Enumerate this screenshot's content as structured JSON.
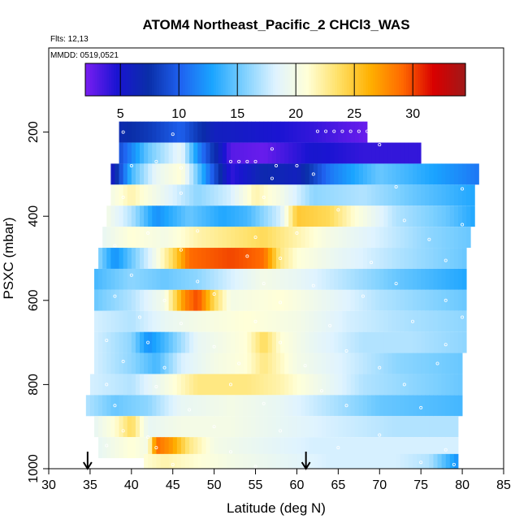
{
  "chart_data": {
    "type": "heatmap",
    "title": "ATOM4 Northeast_Pacific_2 CHCl3_WAS",
    "flights_label": "Flts: 12,13",
    "mmdd_label": "MMDD: 0519,0521",
    "xlabel": "Latitude (deg N)",
    "ylabel": "PSXC (mbar)",
    "xlim": [
      30,
      85
    ],
    "ylim": [
      1000,
      0
    ],
    "x_ticks": [
      30,
      35,
      40,
      45,
      50,
      55,
      60,
      65,
      70,
      75,
      80,
      85
    ],
    "y_ticks": [
      200,
      400,
      600,
      800,
      1000
    ],
    "colorbar": {
      "range": [
        2,
        34.5
      ],
      "ticks": [
        5,
        10,
        15,
        20,
        25,
        30
      ],
      "colors": [
        "#7a1ef2",
        "#1a14d2",
        "#0a2ea8",
        "#1f62f0",
        "#1aa4ff",
        "#7dd0ff",
        "#dff3ff",
        "#ffffd8",
        "#ffe066",
        "#ffb000",
        "#ff6a00",
        "#d90000",
        "#a01818"
      ],
      "grid_color": "#000000"
    },
    "colors": {
      "sample_point": "#ffffff",
      "frame": "#000000"
    },
    "arrows_at_latitude": [
      34.7,
      61.1
    ],
    "rows": [
      {
        "p": 200,
        "lat": [
          38.5,
          68.5
        ],
        "knots": [
          [
            38.5,
            7
          ],
          [
            42,
            8
          ],
          [
            46,
            10
          ],
          [
            50,
            6
          ],
          [
            56,
            5
          ],
          [
            62,
            4
          ],
          [
            66,
            3
          ],
          [
            68.5,
            2.5
          ]
        ]
      },
      {
        "p": 250,
        "lat": [
          38.5,
          75
        ],
        "knots": [
          [
            38.5,
            9
          ],
          [
            42,
            15
          ],
          [
            46,
            19
          ],
          [
            48,
            12
          ],
          [
            52,
            3
          ],
          [
            56,
            2.5
          ],
          [
            62,
            5
          ],
          [
            68,
            4
          ],
          [
            75,
            4
          ]
        ]
      },
      {
        "p": 300,
        "lat": [
          37.5,
          82
        ],
        "knots": [
          [
            37.5,
            5
          ],
          [
            40,
            14
          ],
          [
            43,
            19
          ],
          [
            46,
            21
          ],
          [
            49,
            12
          ],
          [
            52,
            4
          ],
          [
            56,
            7
          ],
          [
            60,
            6
          ],
          [
            64,
            11
          ],
          [
            70,
            15
          ],
          [
            76,
            13
          ],
          [
            82,
            11
          ]
        ]
      },
      {
        "p": 350,
        "lat": [
          37.5,
          81.5
        ],
        "knots": [
          [
            37.5,
            20
          ],
          [
            40,
            22
          ],
          [
            44,
            19
          ],
          [
            48,
            16
          ],
          [
            52,
            18
          ],
          [
            55,
            22
          ],
          [
            58,
            20
          ],
          [
            62,
            16
          ],
          [
            68,
            17
          ],
          [
            74,
            15
          ],
          [
            81.5,
            13
          ]
        ]
      },
      {
        "p": 400,
        "lat": [
          37,
          81.5
        ],
        "knots": [
          [
            37,
            20
          ],
          [
            40,
            17
          ],
          [
            43,
            12
          ],
          [
            47,
            15
          ],
          [
            51,
            13
          ],
          [
            54,
            14
          ],
          [
            58,
            18
          ],
          [
            60,
            25
          ],
          [
            64,
            24
          ],
          [
            67,
            21
          ],
          [
            72,
            17
          ],
          [
            78,
            15
          ],
          [
            81.5,
            13
          ]
        ]
      },
      {
        "p": 450,
        "lat": [
          36.5,
          81
        ],
        "knots": [
          [
            36.5,
            19
          ],
          [
            40,
            21
          ],
          [
            44,
            20
          ],
          [
            48,
            22
          ],
          [
            52,
            23
          ],
          [
            56,
            24
          ],
          [
            60,
            22
          ],
          [
            64,
            20
          ],
          [
            70,
            18
          ],
          [
            76,
            16
          ],
          [
            81,
            15
          ]
        ]
      },
      {
        "p": 500,
        "lat": [
          36,
          80.5
        ],
        "knots": [
          [
            36,
            16
          ],
          [
            38,
            12
          ],
          [
            42,
            18
          ],
          [
            45,
            24
          ],
          [
            47,
            29
          ],
          [
            52,
            30
          ],
          [
            56,
            29
          ],
          [
            58,
            23
          ],
          [
            60,
            21
          ],
          [
            65,
            19
          ],
          [
            72,
            17
          ],
          [
            80.5,
            15
          ]
        ]
      },
      {
        "p": 550,
        "lat": [
          35.5,
          80.5
        ],
        "knots": [
          [
            35.5,
            14
          ],
          [
            40,
            16
          ],
          [
            44,
            15
          ],
          [
            48,
            16
          ],
          [
            52,
            18
          ],
          [
            56,
            20
          ],
          [
            60,
            19
          ],
          [
            66,
            17
          ],
          [
            72,
            15
          ],
          [
            80.5,
            13
          ]
        ]
      },
      {
        "p": 600,
        "lat": [
          35.5,
          80.5
        ],
        "knots": [
          [
            35.5,
            15
          ],
          [
            40,
            17
          ],
          [
            44,
            20
          ],
          [
            46.5,
            28
          ],
          [
            48,
            30
          ],
          [
            50,
            24
          ],
          [
            52,
            20
          ],
          [
            58,
            21
          ],
          [
            64,
            19
          ],
          [
            70,
            17
          ],
          [
            80.5,
            15
          ]
        ]
      },
      {
        "p": 650,
        "lat": [
          35.5,
          80.5
        ],
        "knots": [
          [
            35.5,
            18
          ],
          [
            40,
            17
          ],
          [
            44,
            19
          ],
          [
            48,
            20
          ],
          [
            54,
            21
          ],
          [
            60,
            20
          ],
          [
            66,
            18
          ],
          [
            72,
            17
          ],
          [
            80.5,
            16
          ]
        ]
      },
      {
        "p": 700,
        "lat": [
          35.5,
          80.5
        ],
        "knots": [
          [
            35.5,
            18
          ],
          [
            40,
            16
          ],
          [
            42,
            12
          ],
          [
            44,
            14
          ],
          [
            48,
            19
          ],
          [
            54,
            21
          ],
          [
            56,
            24
          ],
          [
            58,
            21
          ],
          [
            62,
            19
          ],
          [
            68,
            17
          ],
          [
            74,
            17
          ],
          [
            80.5,
            16
          ]
        ]
      },
      {
        "p": 750,
        "lat": [
          35.5,
          80
        ],
        "knots": [
          [
            35.5,
            18
          ],
          [
            40,
            16
          ],
          [
            43,
            14
          ],
          [
            46,
            18
          ],
          [
            50,
            20
          ],
          [
            54,
            21
          ],
          [
            56,
            23
          ],
          [
            60,
            20
          ],
          [
            66,
            18
          ],
          [
            72,
            16
          ],
          [
            80,
            15
          ]
        ]
      },
      {
        "p": 800,
        "lat": [
          35,
          80
        ],
        "knots": [
          [
            35,
            18
          ],
          [
            40,
            17
          ],
          [
            44,
            20
          ],
          [
            48,
            23
          ],
          [
            54,
            23
          ],
          [
            58,
            22
          ],
          [
            62,
            20
          ],
          [
            68,
            17
          ],
          [
            74,
            16
          ],
          [
            80,
            15
          ]
        ]
      },
      {
        "p": 850,
        "lat": [
          34.5,
          80
        ],
        "knots": [
          [
            34.5,
            17
          ],
          [
            38,
            15
          ],
          [
            42,
            16
          ],
          [
            46,
            19
          ],
          [
            52,
            20
          ],
          [
            58,
            19
          ],
          [
            64,
            17
          ],
          [
            70,
            15
          ],
          [
            80,
            14
          ]
        ]
      },
      {
        "p": 900,
        "lat": [
          35.5,
          79.5
        ],
        "knots": [
          [
            35.5,
            19
          ],
          [
            38,
            21
          ],
          [
            40,
            24
          ],
          [
            42,
            19
          ],
          [
            46,
            20
          ],
          [
            52,
            20
          ],
          [
            58,
            19
          ],
          [
            64,
            18
          ],
          [
            72,
            17
          ],
          [
            79.5,
            17
          ]
        ]
      },
      {
        "p": 950,
        "lat": [
          36,
          79.5
        ],
        "knots": [
          [
            36,
            19
          ],
          [
            40,
            21
          ],
          [
            42,
            20
          ],
          [
            43,
            29
          ],
          [
            45,
            27
          ],
          [
            47,
            23
          ],
          [
            50,
            20
          ],
          [
            56,
            19
          ],
          [
            62,
            18
          ],
          [
            70,
            18
          ],
          [
            79.5,
            18
          ]
        ]
      },
      {
        "p": 990,
        "lat": [
          41.5,
          79.5
        ],
        "knots": [
          [
            41.5,
            21
          ],
          [
            44,
            22
          ],
          [
            48,
            21
          ],
          [
            52,
            20
          ],
          [
            58,
            19
          ],
          [
            64,
            18
          ],
          [
            72,
            18
          ],
          [
            76,
            17
          ],
          [
            79.5,
            12
          ]
        ]
      }
    ],
    "sample_points": [
      [
        39,
        200
      ],
      [
        45,
        205
      ],
      [
        62.5,
        198
      ],
      [
        63.5,
        198
      ],
      [
        64.5,
        198
      ],
      [
        65.5,
        198
      ],
      [
        66.5,
        198
      ],
      [
        67.5,
        198
      ],
      [
        68.5,
        198
      ],
      [
        57,
        240
      ],
      [
        70,
        230
      ],
      [
        52,
        270
      ],
      [
        53,
        270
      ],
      [
        54,
        270
      ],
      [
        55,
        270
      ],
      [
        57.5,
        280
      ],
      [
        60,
        280
      ],
      [
        40,
        280
      ],
      [
        43,
        270
      ],
      [
        46,
        285
      ],
      [
        57,
        310
      ],
      [
        62,
        300
      ],
      [
        72,
        330
      ],
      [
        80,
        335
      ],
      [
        39,
        355
      ],
      [
        46,
        345
      ],
      [
        56,
        355
      ],
      [
        65,
        385
      ],
      [
        73,
        410
      ],
      [
        80,
        420
      ],
      [
        42,
        440
      ],
      [
        48,
        435
      ],
      [
        55,
        450
      ],
      [
        60,
        440
      ],
      [
        76,
        455
      ],
      [
        38,
        470
      ],
      [
        46,
        480
      ],
      [
        54,
        495
      ],
      [
        58,
        500
      ],
      [
        69,
        510
      ],
      [
        78,
        505
      ],
      [
        40,
        540
      ],
      [
        48,
        555
      ],
      [
        56,
        560
      ],
      [
        62,
        565
      ],
      [
        72,
        560
      ],
      [
        38,
        590
      ],
      [
        44,
        600
      ],
      [
        50,
        585
      ],
      [
        58,
        605
      ],
      [
        68,
        590
      ],
      [
        78,
        600
      ],
      [
        41,
        640
      ],
      [
        46,
        655
      ],
      [
        55,
        650
      ],
      [
        64,
        660
      ],
      [
        74,
        650
      ],
      [
        80,
        640
      ],
      [
        37,
        695
      ],
      [
        42,
        700
      ],
      [
        50,
        710
      ],
      [
        58,
        700
      ],
      [
        66,
        720
      ],
      [
        78,
        705
      ],
      [
        39,
        745
      ],
      [
        44,
        760
      ],
      [
        53,
        750
      ],
      [
        61,
        755
      ],
      [
        70,
        760
      ],
      [
        77,
        750
      ],
      [
        37,
        800
      ],
      [
        43,
        805
      ],
      [
        52,
        800
      ],
      [
        63,
        815
      ],
      [
        73,
        800
      ],
      [
        38,
        850
      ],
      [
        47,
        860
      ],
      [
        56,
        845
      ],
      [
        66,
        850
      ],
      [
        75,
        855
      ],
      [
        39,
        910
      ],
      [
        42,
        925
      ],
      [
        50,
        900
      ],
      [
        58,
        910
      ],
      [
        70,
        920
      ],
      [
        37,
        945
      ],
      [
        43,
        950
      ],
      [
        52,
        960
      ],
      [
        65,
        950
      ],
      [
        78,
        955
      ],
      [
        45,
        990
      ],
      [
        55,
        995
      ],
      [
        75,
        985
      ],
      [
        79,
        990
      ]
    ]
  }
}
